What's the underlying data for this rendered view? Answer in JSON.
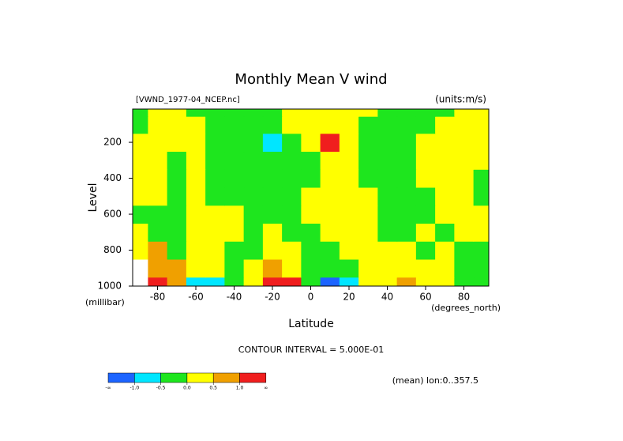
{
  "chart_data": {
    "type": "contour",
    "title": "Monthly Mean V wind",
    "subtitle": "[VWND_1977-04_NCEP.nc]",
    "units": "(units:m/s)",
    "x_label": "Latitude",
    "x_unit": "(degrees_north)",
    "y_label": "Level",
    "y_unit": "(millibar)",
    "interval_note": "CONTOUR INTERVAL = 5.000E-01",
    "footer": "(mean) lon:0..357.5",
    "x": [
      -90,
      -80,
      -70,
      -60,
      -50,
      -40,
      -30,
      -20,
      -10,
      0,
      10,
      20,
      30,
      40,
      50,
      60,
      70,
      80,
      90
    ],
    "y": [
      1000,
      900,
      800,
      700,
      600,
      500,
      400,
      300,
      200,
      100,
      10
    ],
    "z": [
      [
        null,
        1.2,
        0.7,
        -0.8,
        -0.7,
        -0.2,
        0.3,
        1.2,
        1.1,
        -0.3,
        -1.2,
        -0.7,
        0.2,
        0.3,
        0.6,
        0.2,
        0.2,
        -0.2,
        -0.2
      ],
      [
        null,
        0.8,
        0.6,
        0.2,
        0.1,
        -0.1,
        0.2,
        0.6,
        0.4,
        -0.2,
        -0.4,
        -0.2,
        0.2,
        0.2,
        0.3,
        0.2,
        0.1,
        -0.2,
        -0.2
      ],
      [
        0.3,
        0.6,
        -0.2,
        0.2,
        0.2,
        -0.2,
        -0.1,
        0.2,
        0.2,
        -0.2,
        -0.2,
        0.2,
        0.2,
        0.2,
        0.2,
        -0.1,
        0.1,
        -0.1,
        -0.2
      ],
      [
        0.2,
        -0.1,
        -0.2,
        0.2,
        0.2,
        0.2,
        -0.2,
        0.2,
        -0.2,
        -0.2,
        0.1,
        0.2,
        0.2,
        -0.2,
        -0.2,
        0.1,
        -0.1,
        0.2,
        0.2
      ],
      [
        -0.2,
        -0.2,
        -0.1,
        0.2,
        0.2,
        0.2,
        -0.2,
        -0.2,
        -0.2,
        0.1,
        0.2,
        0.2,
        0.2,
        -0.2,
        -0.2,
        -0.2,
        0.2,
        0.2,
        0.2
      ],
      [
        0.2,
        0.2,
        -0.2,
        0.2,
        -0.2,
        -0.2,
        -0.2,
        -0.2,
        -0.2,
        0.2,
        0.2,
        0.2,
        0.2,
        -0.2,
        -0.2,
        -0.2,
        0.2,
        0.2,
        -0.1
      ],
      [
        0.2,
        0.2,
        -0.2,
        0.2,
        -0.2,
        -0.2,
        -0.2,
        -0.2,
        -0.2,
        -0.1,
        0.2,
        0.2,
        -0.2,
        -0.2,
        -0.2,
        0.2,
        0.2,
        0.2,
        -0.2
      ],
      [
        0.2,
        0.2,
        -0.2,
        0.2,
        -0.2,
        -0.2,
        -0.2,
        -0.2,
        -0.2,
        -0.2,
        0.2,
        0.2,
        -0.2,
        -0.2,
        -0.2,
        0.2,
        0.2,
        0.2,
        0.2
      ],
      [
        0.2,
        0.2,
        0.2,
        0.2,
        -0.2,
        -0.2,
        -0.3,
        -0.7,
        -0.2,
        0.2,
        1.1,
        0.3,
        -0.2,
        -0.2,
        -0.2,
        0.2,
        0.2,
        0.2,
        0.2
      ],
      [
        -0.1,
        0.2,
        0.2,
        0.2,
        -0.2,
        -0.2,
        -0.2,
        -0.3,
        0.1,
        0.2,
        0.3,
        0.2,
        -0.2,
        -0.2,
        -0.2,
        -0.1,
        0.1,
        0.2,
        0.2
      ],
      [
        -0.1,
        0.1,
        0.1,
        -0.1,
        -0.1,
        -0.1,
        -0.1,
        -0.1,
        0.1,
        0.1,
        0.1,
        0.1,
        0.1,
        -0.1,
        -0.1,
        -0.1,
        -0.1,
        0.1,
        0.1
      ]
    ],
    "xlim": [
      -93,
      93
    ],
    "ylim": [
      15,
      1000
    ],
    "y_inverted": true,
    "xticks": [
      -80,
      -60,
      -40,
      -20,
      0,
      20,
      40,
      60,
      80
    ],
    "yticks": [
      200,
      400,
      600,
      800,
      1000
    ],
    "colorbar": {
      "colors": [
        "#1c64ff",
        "#00e6ff",
        "#1ee61e",
        "#ffff00",
        "#f0a000",
        "#f01e1e"
      ],
      "ticks": [
        {
          "value": -1,
          "label": "-1.0"
        },
        {
          "value": -0.5,
          "label": "-0.5"
        },
        {
          "value": 0,
          "label": "0.0"
        },
        {
          "value": 0.5,
          "label": "0.5"
        },
        {
          "value": 1,
          "label": "1.0"
        }
      ],
      "low_label": "-∞",
      "high_label": "∞"
    }
  }
}
